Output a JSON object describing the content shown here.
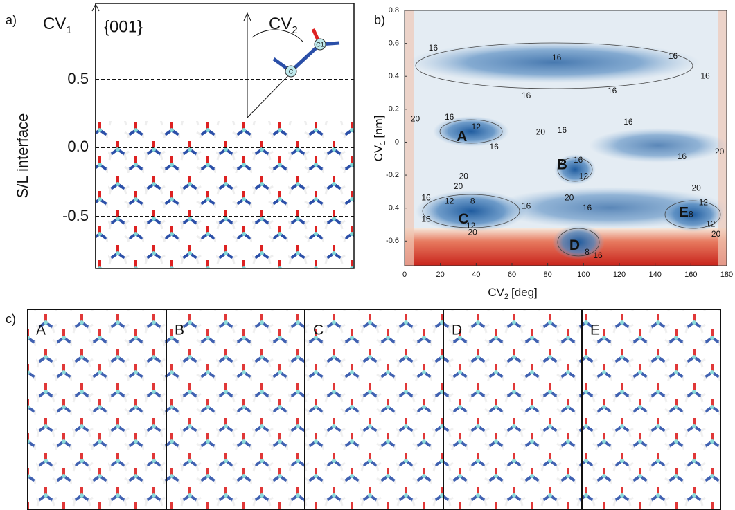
{
  "panel_a": {
    "label": "a)",
    "cv1": {
      "base": "CV",
      "sub": "1"
    },
    "facet": "{001}",
    "cv2": {
      "base": "CV",
      "sub": "2"
    },
    "atoms": [
      "C",
      "C1"
    ],
    "side_label": "S/L interface",
    "levels": [
      "0.5",
      "0.0",
      "-0.5"
    ]
  },
  "chart_data": {
    "type": "contour",
    "label": "b)",
    "xlabel": {
      "base": "CV",
      "sub": "2",
      "unit": "[deg]"
    },
    "ylabel": {
      "base": "CV",
      "sub": "1",
      "unit": "[nm]"
    },
    "xlim": [
      0,
      180
    ],
    "ylim": [
      -0.75,
      0.8
    ],
    "xticks": [
      0,
      20,
      40,
      60,
      80,
      100,
      120,
      140,
      160,
      180
    ],
    "yticks": [
      -0.6,
      -0.4,
      -0.2,
      0,
      0.2,
      0.4,
      0.6,
      0.8
    ],
    "contour_labels": [
      {
        "value": 16,
        "x": 16,
        "y": 0.57
      },
      {
        "value": 16,
        "x": 85,
        "y": 0.51
      },
      {
        "value": 16,
        "x": 150,
        "y": 0.52
      },
      {
        "value": 16,
        "x": 168,
        "y": 0.4
      },
      {
        "value": 16,
        "x": 68,
        "y": 0.28
      },
      {
        "value": 16,
        "x": 116,
        "y": 0.31
      },
      {
        "value": 20,
        "x": 6,
        "y": 0.14
      },
      {
        "value": 16,
        "x": 25,
        "y": 0.15
      },
      {
        "value": 12,
        "x": 40,
        "y": 0.09
      },
      {
        "value": 20,
        "x": 76,
        "y": 0.06
      },
      {
        "value": 16,
        "x": 88,
        "y": 0.07
      },
      {
        "value": 16,
        "x": 125,
        "y": 0.12
      },
      {
        "value": 16,
        "x": 50,
        "y": -0.03
      },
      {
        "value": 16,
        "x": 155,
        "y": -0.09
      },
      {
        "value": 20,
        "x": 176,
        "y": -0.06
      },
      {
        "value": 16,
        "x": 97,
        "y": -0.11
      },
      {
        "value": 12,
        "x": 100,
        "y": -0.21
      },
      {
        "value": 20,
        "x": 33,
        "y": -0.21
      },
      {
        "value": 20,
        "x": 30,
        "y": -0.27
      },
      {
        "value": 20,
        "x": 92,
        "y": -0.34
      },
      {
        "value": 20,
        "x": 163,
        "y": -0.28
      },
      {
        "value": 16,
        "x": 12,
        "y": -0.34
      },
      {
        "value": 12,
        "x": 25,
        "y": -0.36
      },
      {
        "value": 8,
        "x": 38,
        "y": -0.36
      },
      {
        "value": 16,
        "x": 68,
        "y": -0.39
      },
      {
        "value": 16,
        "x": 102,
        "y": -0.4
      },
      {
        "value": 16,
        "x": 12,
        "y": -0.47
      },
      {
        "value": 12,
        "x": 37,
        "y": -0.51
      },
      {
        "value": 20,
        "x": 38,
        "y": -0.55
      },
      {
        "value": 12,
        "x": 167,
        "y": -0.37
      },
      {
        "value": 8,
        "x": 160,
        "y": -0.44
      },
      {
        "value": 12,
        "x": 171,
        "y": -0.5
      },
      {
        "value": 20,
        "x": 174,
        "y": -0.56
      },
      {
        "value": 8,
        "x": 102,
        "y": -0.67
      },
      {
        "value": 16,
        "x": 108,
        "y": -0.69
      }
    ],
    "states": [
      {
        "name": "A",
        "x": 32,
        "y": 0.03
      },
      {
        "name": "B",
        "x": 88,
        "y": -0.14
      },
      {
        "name": "C",
        "x": 33,
        "y": -0.47
      },
      {
        "name": "D",
        "x": 95,
        "y": -0.63
      },
      {
        "name": "E",
        "x": 156,
        "y": -0.43
      }
    ]
  },
  "panel_c": {
    "label": "c)",
    "frames": [
      "A",
      "B",
      "C",
      "D",
      "E"
    ]
  }
}
